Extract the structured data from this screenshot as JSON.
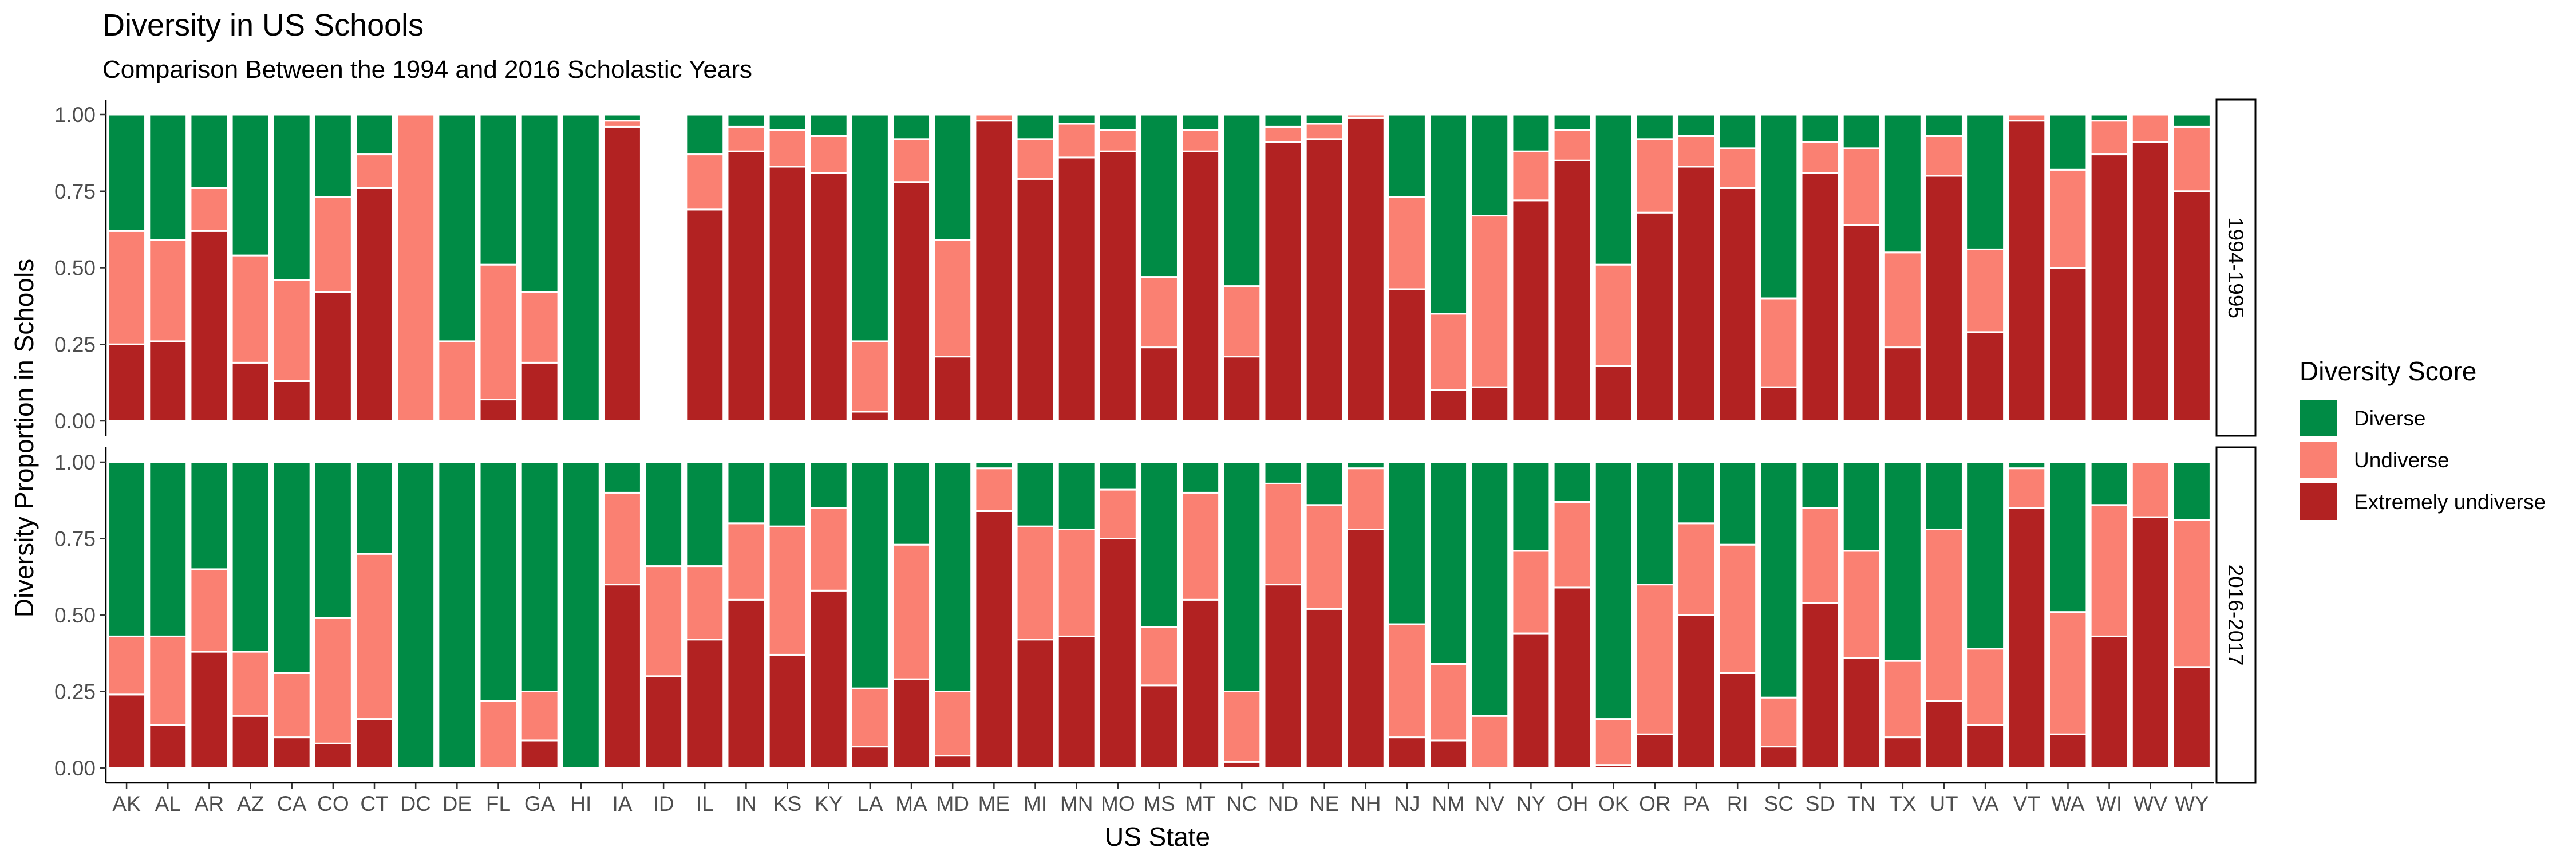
{
  "chart_data": {
    "type": "bar",
    "stacked": true,
    "normalized": true,
    "title": "Diversity in US Schools",
    "subtitle": "Comparison Between the 1994 and 2016 Scholastic Years",
    "xlabel": "US State",
    "ylabel": "Diversity Proportion in Schools",
    "ylim": [
      0,
      1
    ],
    "yticks": [
      "0.00",
      "0.25",
      "0.50",
      "0.75",
      "1.00"
    ],
    "grid": false,
    "legend": {
      "title": "Diversity Score",
      "position": "right",
      "entries": [
        "Diverse",
        "Undiverse",
        "Extremely undiverse"
      ]
    },
    "colors": {
      "Diverse": "#008B45",
      "Undiverse": "#FA8072",
      "Extremely undiverse": "#B22222"
    },
    "categories": [
      "AK",
      "AL",
      "AR",
      "AZ",
      "CA",
      "CO",
      "CT",
      "DC",
      "DE",
      "FL",
      "GA",
      "HI",
      "IA",
      "ID",
      "IL",
      "IN",
      "KS",
      "KY",
      "LA",
      "MA",
      "MD",
      "ME",
      "MI",
      "MN",
      "MO",
      "MS",
      "MT",
      "NC",
      "ND",
      "NE",
      "NH",
      "NJ",
      "NM",
      "NV",
      "NY",
      "OH",
      "OK",
      "OR",
      "PA",
      "RI",
      "SC",
      "SD",
      "TN",
      "TX",
      "UT",
      "VA",
      "VT",
      "WA",
      "WI",
      "WV",
      "WY"
    ],
    "facets": [
      {
        "label": "1994-1995",
        "extremely_undiverse": [
          0.25,
          0.26,
          0.62,
          0.19,
          0.13,
          0.42,
          0.76,
          0.0,
          0.0,
          0.07,
          0.19,
          0.0,
          0.96,
          null,
          0.69,
          0.88,
          0.83,
          0.81,
          0.03,
          0.78,
          0.21,
          0.98,
          0.79,
          0.86,
          0.88,
          0.24,
          0.88,
          0.21,
          0.91,
          0.92,
          0.99,
          0.43,
          0.1,
          0.11,
          0.72,
          0.85,
          0.18,
          0.68,
          0.83,
          0.76,
          0.11,
          0.81,
          0.64,
          0.24,
          0.8,
          0.29,
          0.98,
          0.5,
          0.87,
          0.91,
          0.75
        ],
        "undiverse": [
          0.37,
          0.33,
          0.14,
          0.35,
          0.33,
          0.31,
          0.11,
          1.0,
          0.26,
          0.44,
          0.23,
          0.0,
          0.02,
          null,
          0.18,
          0.08,
          0.12,
          0.12,
          0.23,
          0.14,
          0.38,
          0.02,
          0.13,
          0.11,
          0.07,
          0.23,
          0.07,
          0.23,
          0.05,
          0.05,
          0.01,
          0.3,
          0.25,
          0.56,
          0.16,
          0.1,
          0.33,
          0.24,
          0.1,
          0.13,
          0.29,
          0.1,
          0.25,
          0.31,
          0.13,
          0.27,
          0.02,
          0.32,
          0.11,
          0.09,
          0.21
        ],
        "diverse": [
          0.38,
          0.41,
          0.24,
          0.46,
          0.54,
          0.27,
          0.13,
          0.0,
          0.74,
          0.49,
          0.58,
          1.0,
          0.02,
          null,
          0.13,
          0.04,
          0.05,
          0.07,
          0.74,
          0.08,
          0.41,
          0.0,
          0.08,
          0.03,
          0.05,
          0.53,
          0.05,
          0.56,
          0.04,
          0.03,
          0.0,
          0.27,
          0.65,
          0.33,
          0.12,
          0.05,
          0.49,
          0.08,
          0.07,
          0.11,
          0.6,
          0.09,
          0.11,
          0.45,
          0.07,
          0.44,
          0.0,
          0.18,
          0.02,
          0.0,
          0.04
        ]
      },
      {
        "label": "2016-2017",
        "extremely_undiverse": [
          0.24,
          0.14,
          0.38,
          0.17,
          0.1,
          0.08,
          0.16,
          0.0,
          0.0,
          0.0,
          0.09,
          0.0,
          0.6,
          0.3,
          0.42,
          0.55,
          0.37,
          0.58,
          0.07,
          0.29,
          0.04,
          0.84,
          0.42,
          0.43,
          0.75,
          0.27,
          0.55,
          0.02,
          0.6,
          0.52,
          0.78,
          0.1,
          0.09,
          0.0,
          0.44,
          0.59,
          0.01,
          0.11,
          0.5,
          0.31,
          0.07,
          0.54,
          0.36,
          0.1,
          0.22,
          0.14,
          0.85,
          0.11,
          0.43,
          0.82,
          0.33
        ],
        "undiverse": [
          0.19,
          0.29,
          0.27,
          0.21,
          0.21,
          0.41,
          0.54,
          0.0,
          0.0,
          0.22,
          0.16,
          0.0,
          0.3,
          0.36,
          0.24,
          0.25,
          0.42,
          0.27,
          0.19,
          0.44,
          0.21,
          0.14,
          0.37,
          0.35,
          0.16,
          0.19,
          0.35,
          0.23,
          0.33,
          0.34,
          0.2,
          0.37,
          0.25,
          0.17,
          0.27,
          0.28,
          0.15,
          0.49,
          0.3,
          0.42,
          0.16,
          0.31,
          0.35,
          0.25,
          0.56,
          0.25,
          0.13,
          0.4,
          0.43,
          0.18,
          0.48
        ],
        "diverse": [
          0.57,
          0.57,
          0.35,
          0.62,
          0.69,
          0.51,
          0.3,
          1.0,
          1.0,
          0.78,
          0.75,
          1.0,
          0.1,
          0.34,
          0.34,
          0.2,
          0.21,
          0.15,
          0.74,
          0.27,
          0.75,
          0.02,
          0.21,
          0.22,
          0.09,
          0.54,
          0.1,
          0.75,
          0.07,
          0.14,
          0.02,
          0.53,
          0.66,
          0.83,
          0.29,
          0.13,
          0.84,
          0.4,
          0.2,
          0.27,
          0.77,
          0.15,
          0.29,
          0.65,
          0.22,
          0.61,
          0.02,
          0.49,
          0.14,
          0.0,
          0.19
        ]
      }
    ]
  }
}
